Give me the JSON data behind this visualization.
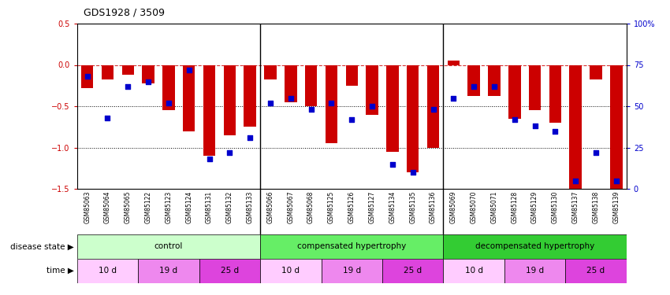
{
  "title": "GDS1928 / 3509",
  "samples": [
    "GSM85063",
    "GSM85064",
    "GSM85065",
    "GSM85122",
    "GSM85123",
    "GSM85124",
    "GSM85131",
    "GSM85132",
    "GSM85133",
    "GSM85066",
    "GSM85067",
    "GSM85068",
    "GSM85125",
    "GSM85126",
    "GSM85127",
    "GSM85134",
    "GSM85135",
    "GSM85136",
    "GSM85069",
    "GSM85070",
    "GSM85071",
    "GSM85128",
    "GSM85129",
    "GSM85130",
    "GSM85137",
    "GSM85138",
    "GSM85139"
  ],
  "log2_ratio": [
    -0.28,
    -0.18,
    -0.12,
    -0.22,
    -0.55,
    -0.8,
    -1.1,
    -0.85,
    -0.75,
    -0.18,
    -0.45,
    -0.5,
    -0.95,
    -0.25,
    -0.6,
    -1.05,
    -1.3,
    -1.0,
    0.05,
    -0.38,
    -0.38,
    -0.65,
    -0.55,
    -0.7,
    -1.6,
    -0.18,
    -1.55
  ],
  "percentile_rank": [
    0.68,
    0.43,
    0.62,
    0.65,
    0.52,
    0.72,
    0.18,
    0.22,
    0.31,
    0.52,
    0.55,
    0.48,
    0.52,
    0.42,
    0.5,
    0.15,
    0.1,
    0.48,
    0.55,
    0.62,
    0.62,
    0.42,
    0.38,
    0.35,
    0.05,
    0.22,
    0.05
  ],
  "ylim_left": [
    -1.5,
    0.5
  ],
  "ylim_right": [
    0,
    100
  ],
  "yticks_left": [
    0.5,
    0.0,
    -0.5,
    -1.0,
    -1.5
  ],
  "yticks_right": [
    100,
    75,
    50,
    25,
    0
  ],
  "bar_color": "#cc0000",
  "dot_color": "#0000cc",
  "disease_labels": [
    "control",
    "compensated hypertrophy",
    "decompensated hypertrophy"
  ],
  "disease_ranges": [
    [
      0,
      9
    ],
    [
      9,
      18
    ],
    [
      18,
      27
    ]
  ],
  "disease_colors": [
    "#ccffcc",
    "#66ee66",
    "#33cc33"
  ],
  "time_groups": [
    {
      "label": "10 d",
      "start": 0,
      "end": 3
    },
    {
      "label": "19 d",
      "start": 3,
      "end": 6
    },
    {
      "label": "25 d",
      "start": 6,
      "end": 9
    },
    {
      "label": "10 d",
      "start": 9,
      "end": 12
    },
    {
      "label": "19 d",
      "start": 12,
      "end": 15
    },
    {
      "label": "25 d",
      "start": 15,
      "end": 18
    },
    {
      "label": "10 d",
      "start": 18,
      "end": 21
    },
    {
      "label": "19 d",
      "start": 21,
      "end": 24
    },
    {
      "label": "25 d",
      "start": 24,
      "end": 27
    }
  ],
  "time_color_map": {
    "10 d": "#ffccff",
    "19 d": "#ee88ee",
    "25 d": "#dd44dd"
  },
  "group_separators": [
    8.5,
    17.5
  ]
}
